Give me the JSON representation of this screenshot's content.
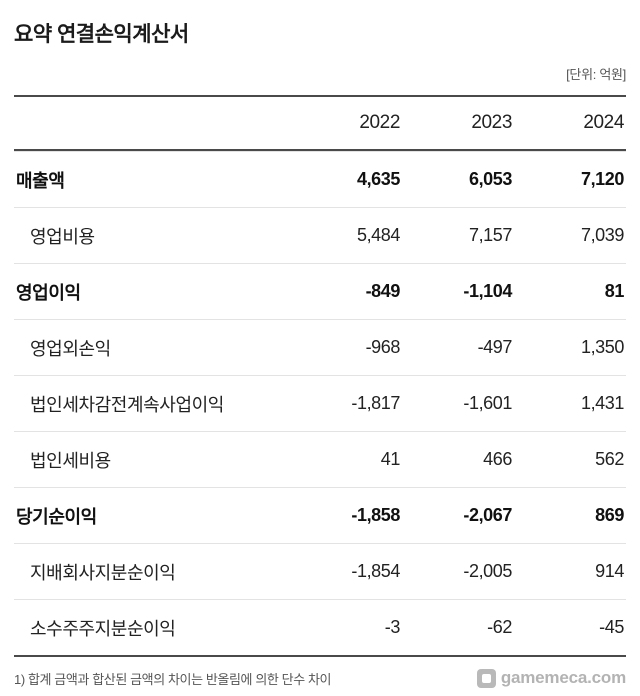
{
  "page": {
    "title": "요약 연결손익계산서",
    "unit_note": "[단위: 억원]",
    "footnote": "1) 합계 금액과 합산된 금액의 차이는 반올림에 의한 단수 차이",
    "watermark": "gamemeca.com"
  },
  "chart_data": {
    "type": "table",
    "title": "요약 연결손익계산서",
    "unit": "억원",
    "columns": [
      "2022",
      "2023",
      "2024"
    ],
    "rows": [
      {
        "label": "매출액",
        "values": [
          "4,635",
          "6,053",
          "7,120"
        ],
        "bold": true,
        "indent": false
      },
      {
        "label": "영업비용",
        "values": [
          "5,484",
          "7,157",
          "7,039"
        ],
        "bold": false,
        "indent": true
      },
      {
        "label": "영업이익",
        "values": [
          "-849",
          "-1,104",
          "81"
        ],
        "bold": true,
        "indent": false
      },
      {
        "label": "영업외손익",
        "values": [
          "-968",
          "-497",
          "1,350"
        ],
        "bold": false,
        "indent": true
      },
      {
        "label": "법인세차감전계속사업이익",
        "values": [
          "-1,817",
          "-1,601",
          "1,431"
        ],
        "bold": false,
        "indent": true
      },
      {
        "label": "법인세비용",
        "values": [
          "41",
          "466",
          "562"
        ],
        "bold": false,
        "indent": true
      },
      {
        "label": "당기순이익",
        "values": [
          "-1,858",
          "-2,067",
          "869"
        ],
        "bold": true,
        "indent": false
      },
      {
        "label": "지배회사지분순이익",
        "values": [
          "-1,854",
          "-2,005",
          "914"
        ],
        "bold": false,
        "indent": true
      },
      {
        "label": "소수주주지분순이익",
        "values": [
          "-3",
          "-62",
          "-45"
        ],
        "bold": false,
        "indent": true
      }
    ]
  }
}
